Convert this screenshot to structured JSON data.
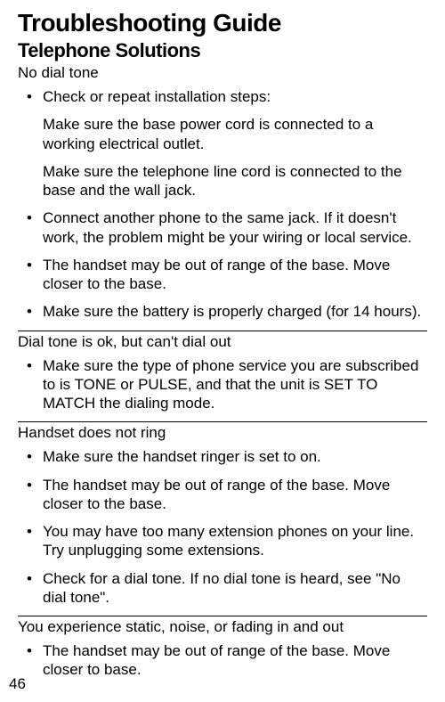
{
  "title": "Troubleshooting Guide",
  "subtitle": "Telephone Solutions",
  "sections": [
    {
      "heading": "No dial tone",
      "items": [
        {
          "text": "Check or repeat installation steps:"
        },
        {
          "sub": "Make sure the base power cord is connected to a working electrical outlet."
        },
        {
          "sub": "Make sure the telephone line cord is connected to the base and the wall jack."
        },
        {
          "text": "Connect another phone to the same jack. If it doesn't work, the problem might be your wiring or local service."
        },
        {
          "text": "The handset may be out of range of the base. Move closer to the base."
        },
        {
          "text": "Make sure the battery is properly charged (for 14 hours)."
        }
      ]
    },
    {
      "heading": "Dial tone is ok, but can't dial out",
      "items": [
        {
          "text": "Make sure the type of phone service you are subscribed to is TONE or PULSE, and that the unit is SET TO MATCH the dialing mode."
        }
      ]
    },
    {
      "heading": "Handset does not ring",
      "items": [
        {
          "text": "Make sure the handset ringer is set to on."
        },
        {
          "text": "The handset may be out of range of the base. Move closer to the base."
        },
        {
          "text": "You may have too many extension phones on your line. Try unplugging some extensions."
        },
        {
          "text": "Check for a dial tone. If no dial tone is heard, see \"No dial tone\"."
        }
      ]
    },
    {
      "heading": "You experience static, noise, or fading in and out",
      "items": [
        {
          "text": "The handset may be out of range of the base. Move closer to base."
        }
      ]
    }
  ],
  "page_number": "46"
}
